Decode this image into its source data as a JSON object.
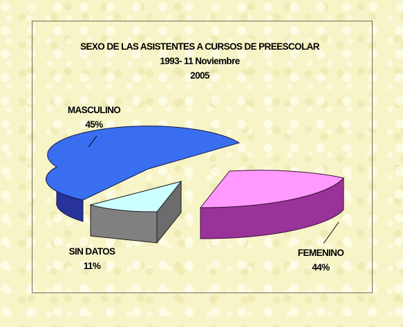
{
  "chart_data": {
    "type": "pie",
    "title": [
      "SEXO DE LAS ASISTENTES A CURSOS DE PREESCOLAR",
      "1993- 11 Noviembre",
      "2005"
    ],
    "slices": [
      {
        "name": "MASCULINO",
        "value": 45,
        "label": "45%",
        "top_color": "#3a6ef0",
        "side_color": "#27329a"
      },
      {
        "name": "FEMENINO",
        "value": 44,
        "label": "44%",
        "top_color": "#ff99ff",
        "side_color": "#993399"
      },
      {
        "name": "SIN DATOS",
        "value": 11,
        "label": "11%",
        "top_color": "#ccffff",
        "side_color": "#808080"
      }
    ],
    "style": "3d-exploded",
    "legend": "none"
  }
}
